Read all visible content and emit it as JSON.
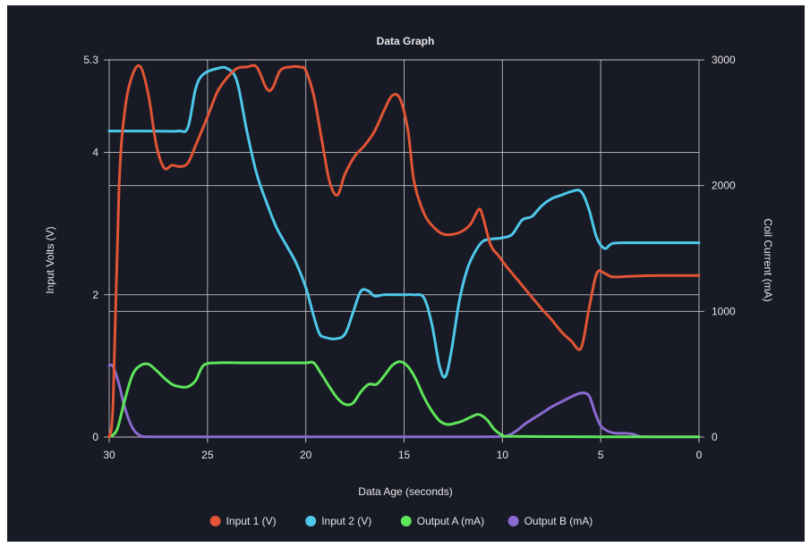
{
  "colors": {
    "background": "#181a25",
    "grid": "#c8c8c8",
    "text": "#e6e6e6"
  },
  "chart_data": {
    "type": "line",
    "title": "Data Graph",
    "xlabel": "Data Age (seconds)",
    "ylabel_left": "Input Volts (V)",
    "ylabel_right": "Coil Current (mA)",
    "xlim": [
      30,
      0
    ],
    "ylim_left": [
      0,
      5.3
    ],
    "ylim_right": [
      0,
      3000
    ],
    "x_ticks": [
      30,
      25,
      20,
      15,
      10,
      5,
      0
    ],
    "y_ticks_left": [
      "0",
      "2",
      "4",
      "5.3"
    ],
    "y_ticks_left_values": [
      0,
      2,
      4,
      5.3
    ],
    "y_ticks_right": [
      "0",
      "1000",
      "2000",
      "3000"
    ],
    "y_ticks_right_values": [
      0,
      1000,
      2000,
      3000
    ],
    "grid": true,
    "legend_position": "bottom-center",
    "series": [
      {
        "name": "Input 1 (V)",
        "axis": "left",
        "color": "#e05535",
        "points": [
          [
            30,
            0
          ],
          [
            29.8,
            0.5
          ],
          [
            29.5,
            3.5
          ],
          [
            29.2,
            4.6
          ],
          [
            28.8,
            5.1
          ],
          [
            28.4,
            5.2
          ],
          [
            28.0,
            4.8
          ],
          [
            27.6,
            4.1
          ],
          [
            27.2,
            3.78
          ],
          [
            26.8,
            3.82
          ],
          [
            26.4,
            3.8
          ],
          [
            26.0,
            3.85
          ],
          [
            25.6,
            4.1
          ],
          [
            25.0,
            4.5
          ],
          [
            24.5,
            4.85
          ],
          [
            24.0,
            5.05
          ],
          [
            23.5,
            5.18
          ],
          [
            23.0,
            5.2
          ],
          [
            22.5,
            5.2
          ],
          [
            22.0,
            4.9
          ],
          [
            21.7,
            4.9
          ],
          [
            21.3,
            5.15
          ],
          [
            20.8,
            5.2
          ],
          [
            20.3,
            5.2
          ],
          [
            20.0,
            5.15
          ],
          [
            19.6,
            4.8
          ],
          [
            19.2,
            4.2
          ],
          [
            18.8,
            3.6
          ],
          [
            18.4,
            3.4
          ],
          [
            18.0,
            3.7
          ],
          [
            17.5,
            3.95
          ],
          [
            17.0,
            4.1
          ],
          [
            16.5,
            4.3
          ],
          [
            16.0,
            4.6
          ],
          [
            15.6,
            4.8
          ],
          [
            15.2,
            4.75
          ],
          [
            14.8,
            4.3
          ],
          [
            14.5,
            3.6
          ],
          [
            14.0,
            3.15
          ],
          [
            13.5,
            2.95
          ],
          [
            13.0,
            2.85
          ],
          [
            12.5,
            2.85
          ],
          [
            12.0,
            2.9
          ],
          [
            11.6,
            3.0
          ],
          [
            11.2,
            3.2
          ],
          [
            11.0,
            3.1
          ],
          [
            10.6,
            2.7
          ],
          [
            10.2,
            2.55
          ],
          [
            9.8,
            2.4
          ],
          [
            9.2,
            2.2
          ],
          [
            8.6,
            2.0
          ],
          [
            8.0,
            1.8
          ],
          [
            7.5,
            1.65
          ],
          [
            7.0,
            1.48
          ],
          [
            6.5,
            1.35
          ],
          [
            6.0,
            1.25
          ],
          [
            5.6,
            1.8
          ],
          [
            5.2,
            2.3
          ],
          [
            4.8,
            2.3
          ],
          [
            4.4,
            2.25
          ],
          [
            3.5,
            2.26
          ],
          [
            2.0,
            2.27
          ],
          [
            0,
            2.27
          ]
        ]
      },
      {
        "name": "Input 2 (V)",
        "axis": "left",
        "color": "#4ec8ea",
        "points": [
          [
            30,
            4.3
          ],
          [
            28,
            4.3
          ],
          [
            26.5,
            4.3
          ],
          [
            26.0,
            4.35
          ],
          [
            25.6,
            4.9
          ],
          [
            25.2,
            5.1
          ],
          [
            24.5,
            5.18
          ],
          [
            24.0,
            5.18
          ],
          [
            23.5,
            5.0
          ],
          [
            23.0,
            4.3
          ],
          [
            22.5,
            3.7
          ],
          [
            22.0,
            3.3
          ],
          [
            21.5,
            2.95
          ],
          [
            21.0,
            2.7
          ],
          [
            20.5,
            2.45
          ],
          [
            20.0,
            2.1
          ],
          [
            19.6,
            1.7
          ],
          [
            19.3,
            1.45
          ],
          [
            19.0,
            1.4
          ],
          [
            18.5,
            1.38
          ],
          [
            18.0,
            1.45
          ],
          [
            17.6,
            1.75
          ],
          [
            17.2,
            2.05
          ],
          [
            16.8,
            2.05
          ],
          [
            16.5,
            1.98
          ],
          [
            16.0,
            2.0
          ],
          [
            15.0,
            2.0
          ],
          [
            14.5,
            2.0
          ],
          [
            14.0,
            1.96
          ],
          [
            13.6,
            1.6
          ],
          [
            13.2,
            1.0
          ],
          [
            12.9,
            0.85
          ],
          [
            12.6,
            1.2
          ],
          [
            12.2,
            1.9
          ],
          [
            11.8,
            2.35
          ],
          [
            11.4,
            2.6
          ],
          [
            11.0,
            2.75
          ],
          [
            10.6,
            2.78
          ],
          [
            10.0,
            2.8
          ],
          [
            9.5,
            2.85
          ],
          [
            9.0,
            3.05
          ],
          [
            8.5,
            3.1
          ],
          [
            8.0,
            3.25
          ],
          [
            7.5,
            3.35
          ],
          [
            7.0,
            3.4
          ],
          [
            6.5,
            3.45
          ],
          [
            6.0,
            3.45
          ],
          [
            5.6,
            3.2
          ],
          [
            5.2,
            2.8
          ],
          [
            4.8,
            2.65
          ],
          [
            4.4,
            2.72
          ],
          [
            3.5,
            2.73
          ],
          [
            2.0,
            2.73
          ],
          [
            0,
            2.73
          ]
        ]
      },
      {
        "name": "Output A (mA)",
        "axis": "right",
        "color": "#5ee55a",
        "points": [
          [
            30,
            0
          ],
          [
            29.6,
            60
          ],
          [
            29.2,
            300
          ],
          [
            28.8,
            500
          ],
          [
            28.4,
            570
          ],
          [
            28.0,
            580
          ],
          [
            27.6,
            530
          ],
          [
            27.2,
            470
          ],
          [
            26.8,
            420
          ],
          [
            26.4,
            400
          ],
          [
            26.0,
            400
          ],
          [
            25.6,
            450
          ],
          [
            25.2,
            570
          ],
          [
            24.5,
            590
          ],
          [
            23.0,
            590
          ],
          [
            21.0,
            590
          ],
          [
            20.0,
            590
          ],
          [
            19.6,
            590
          ],
          [
            19.2,
            500
          ],
          [
            18.8,
            400
          ],
          [
            18.4,
            310
          ],
          [
            18.0,
            260
          ],
          [
            17.6,
            270
          ],
          [
            17.2,
            360
          ],
          [
            16.8,
            420
          ],
          [
            16.4,
            420
          ],
          [
            16.0,
            490
          ],
          [
            15.6,
            570
          ],
          [
            15.2,
            600
          ],
          [
            14.8,
            560
          ],
          [
            14.4,
            460
          ],
          [
            14.0,
            320
          ],
          [
            13.6,
            210
          ],
          [
            13.2,
            130
          ],
          [
            12.8,
            100
          ],
          [
            12.4,
            110
          ],
          [
            12.0,
            130
          ],
          [
            11.6,
            160
          ],
          [
            11.2,
            180
          ],
          [
            10.8,
            140
          ],
          [
            10.4,
            60
          ],
          [
            10.0,
            15
          ],
          [
            9.5,
            5
          ],
          [
            5,
            2
          ],
          [
            0,
            2
          ]
        ]
      },
      {
        "name": "Output B (mA)",
        "axis": "right",
        "color": "#8a6acf",
        "points": [
          [
            30,
            570
          ],
          [
            29.8,
            560
          ],
          [
            29.5,
            420
          ],
          [
            29.2,
            230
          ],
          [
            28.8,
            70
          ],
          [
            28.4,
            10
          ],
          [
            28.0,
            3
          ],
          [
            26,
            2
          ],
          [
            20,
            2
          ],
          [
            15,
            2
          ],
          [
            11,
            2
          ],
          [
            10.0,
            5
          ],
          [
            9.6,
            20
          ],
          [
            9.2,
            60
          ],
          [
            8.8,
            110
          ],
          [
            8.4,
            150
          ],
          [
            8.0,
            190
          ],
          [
            7.5,
            240
          ],
          [
            7.0,
            280
          ],
          [
            6.5,
            320
          ],
          [
            6.0,
            350
          ],
          [
            5.6,
            330
          ],
          [
            5.3,
            200
          ],
          [
            5.0,
            90
          ],
          [
            4.6,
            45
          ],
          [
            4.2,
            30
          ],
          [
            3.8,
            30
          ],
          [
            3.4,
            25
          ],
          [
            3.0,
            5
          ],
          [
            2.5,
            2
          ],
          [
            0,
            2
          ]
        ]
      }
    ]
  }
}
